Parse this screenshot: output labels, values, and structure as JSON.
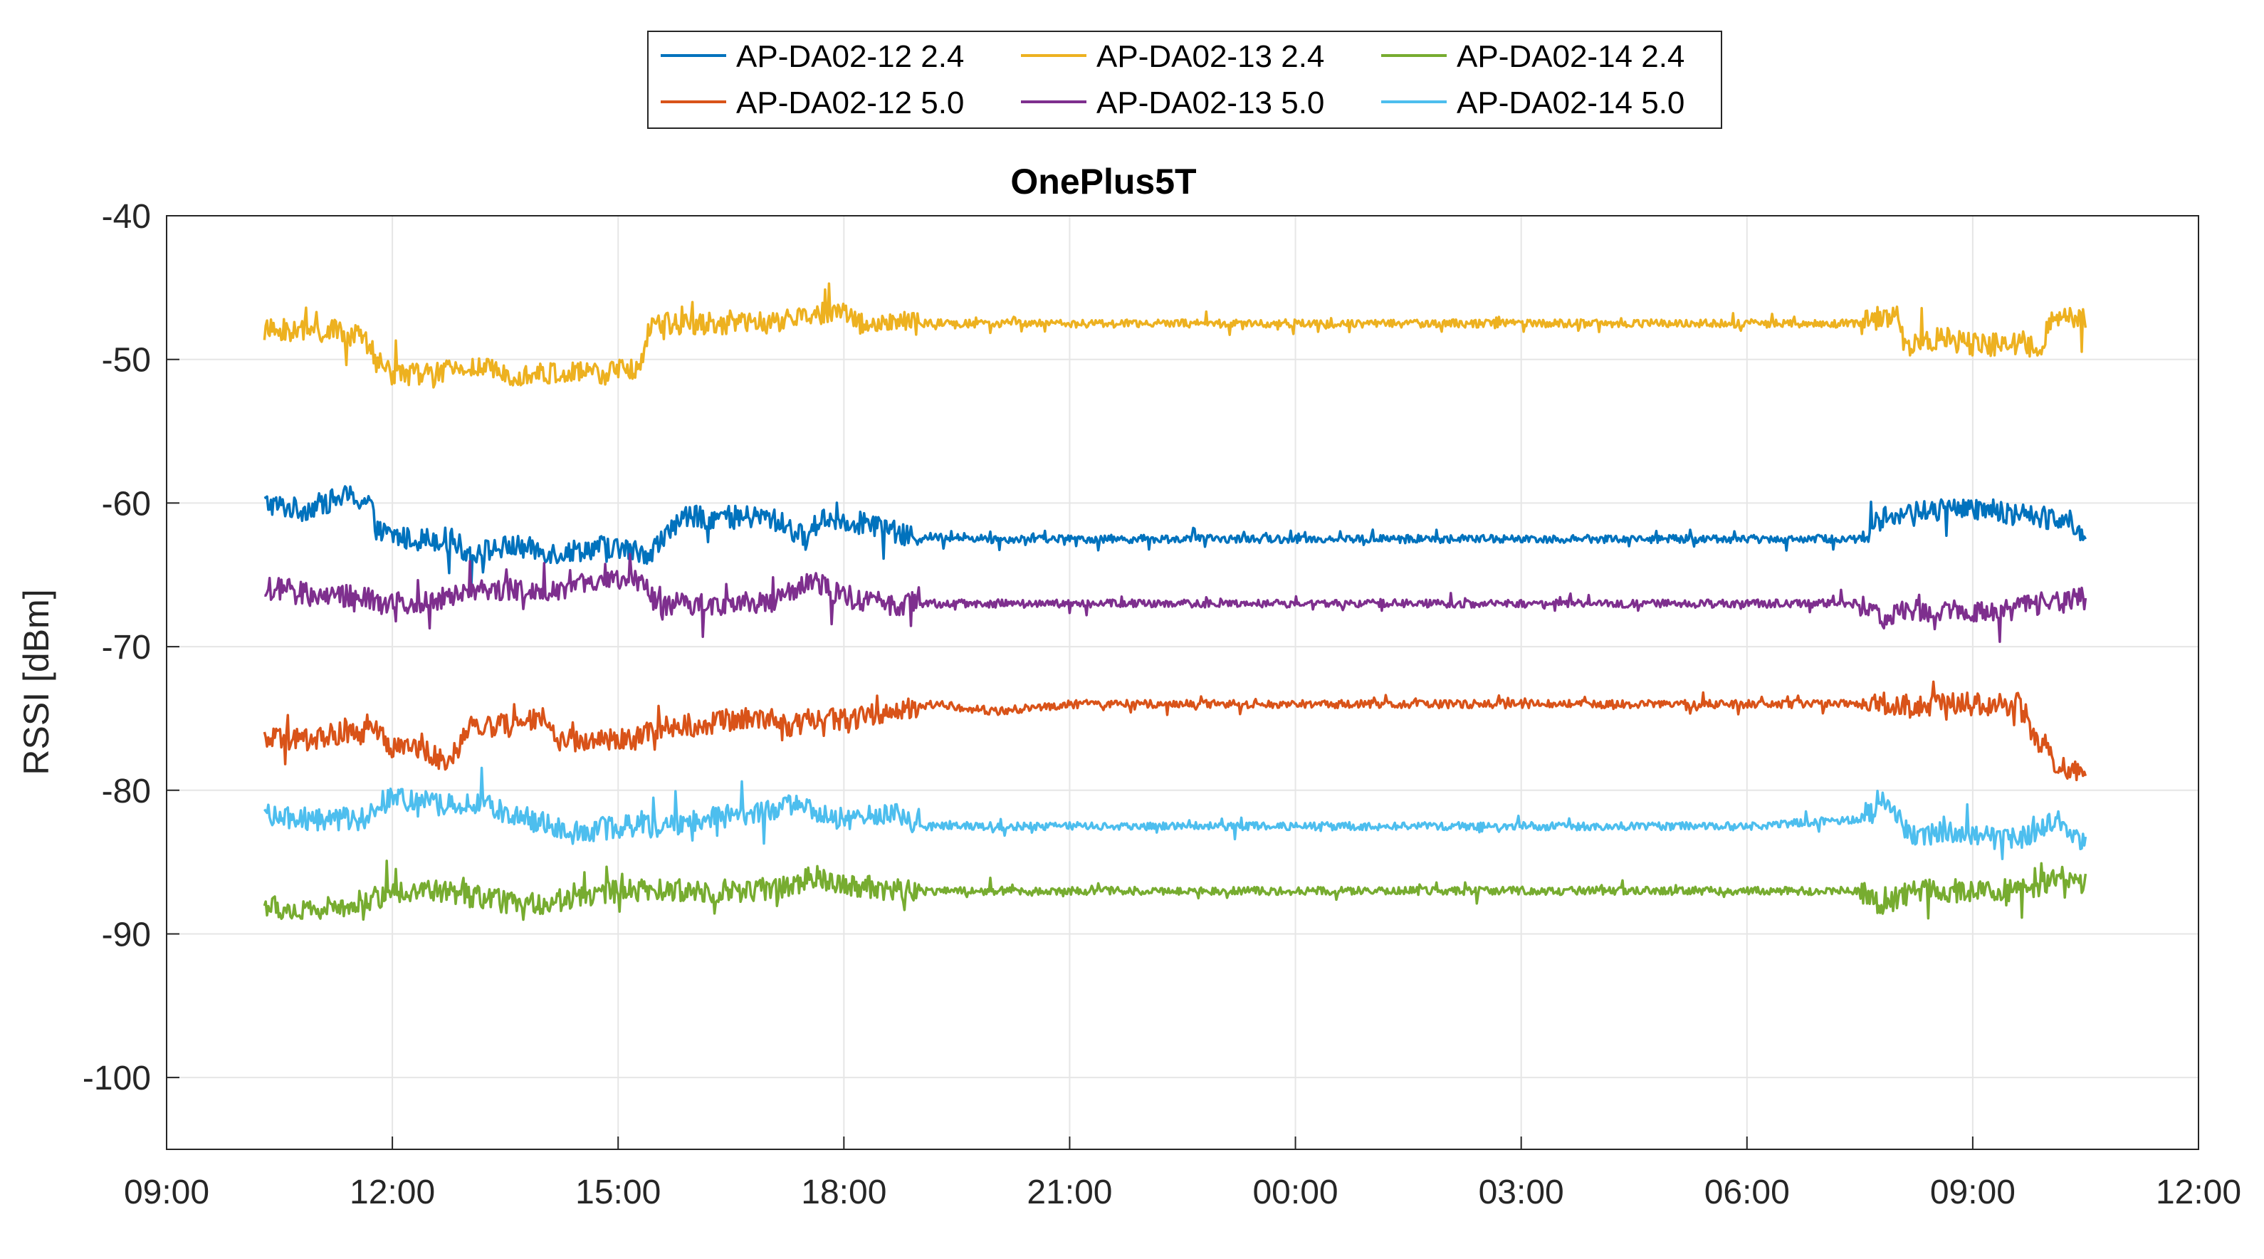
{
  "chart_data": {
    "type": "line",
    "title": "OnePlus5T",
    "xlabel": "",
    "ylabel": "RSSI [dBm]",
    "x_unit": "hours from 09:00 (day 1)",
    "xlim": [
      0,
      27
    ],
    "ylim": [
      -105,
      -40
    ],
    "x_ticks": [
      {
        "value": 0,
        "label": "09:00"
      },
      {
        "value": 3,
        "label": "12:00"
      },
      {
        "value": 6,
        "label": "15:00"
      },
      {
        "value": 9,
        "label": "18:00"
      },
      {
        "value": 12,
        "label": "21:00"
      },
      {
        "value": 15,
        "label": "00:00"
      },
      {
        "value": 18,
        "label": "03:00"
      },
      {
        "value": 21,
        "label": "06:00"
      },
      {
        "value": 24,
        "label": "09:00"
      },
      {
        "value": 27,
        "label": "12:00"
      }
    ],
    "y_ticks": [
      {
        "value": -40,
        "label": "-40"
      },
      {
        "value": -50,
        "label": "-50"
      },
      {
        "value": -60,
        "label": "-60"
      },
      {
        "value": -70,
        "label": "-70"
      },
      {
        "value": -80,
        "label": "-80"
      },
      {
        "value": -90,
        "label": "-90"
      },
      {
        "value": -100,
        "label": "-100"
      }
    ],
    "grid": true,
    "legend_position": "top-center",
    "series": [
      {
        "name": "AP-DA02-12 2.4",
        "color": "#0072BD",
        "points": [
          [
            1.3,
            -60
          ],
          [
            1.8,
            -60.5
          ],
          [
            2.4,
            -59.5
          ],
          [
            2.7,
            -60
          ],
          [
            2.8,
            -62
          ],
          [
            3.2,
            -62.5
          ],
          [
            3.8,
            -62.5
          ],
          [
            4.0,
            -63.5
          ],
          [
            4.6,
            -63
          ],
          [
            5.2,
            -63.5
          ],
          [
            5.8,
            -63
          ],
          [
            6.4,
            -63.5
          ],
          [
            6.7,
            -62
          ],
          [
            6.8,
            -61
          ],
          [
            7.3,
            -61
          ],
          [
            8.0,
            -61
          ],
          [
            8.2,
            -61.5
          ],
          [
            8.5,
            -62.5
          ],
          [
            8.7,
            -61
          ],
          [
            9.4,
            -61.5
          ],
          [
            9.8,
            -62.3
          ],
          [
            11.0,
            -62.5
          ],
          [
            13.0,
            -62.5
          ],
          [
            15.0,
            -62.5
          ],
          [
            17.0,
            -62.5
          ],
          [
            19.0,
            -62.5
          ],
          [
            21.0,
            -62.5
          ],
          [
            22.5,
            -62.5
          ],
          [
            22.8,
            -61
          ],
          [
            23.4,
            -60.5
          ],
          [
            23.8,
            -60.5
          ],
          [
            24.2,
            -60.5
          ],
          [
            24.8,
            -61
          ],
          [
            25.3,
            -61
          ],
          [
            25.5,
            -63
          ]
        ]
      },
      {
        "name": "AP-DA02-13 2.4",
        "color": "#EDB120",
        "points": [
          [
            1.3,
            -48
          ],
          [
            1.6,
            -48
          ],
          [
            2.2,
            -48
          ],
          [
            2.6,
            -48.5
          ],
          [
            2.8,
            -50
          ],
          [
            3.0,
            -51
          ],
          [
            3.6,
            -51
          ],
          [
            4.0,
            -50.5
          ],
          [
            4.6,
            -51
          ],
          [
            5.2,
            -51
          ],
          [
            5.8,
            -51
          ],
          [
            6.3,
            -50.5
          ],
          [
            6.4,
            -48
          ],
          [
            6.6,
            -47.5
          ],
          [
            7.2,
            -47.5
          ],
          [
            8.0,
            -47.5
          ],
          [
            8.5,
            -47
          ],
          [
            9.0,
            -46.5
          ],
          [
            9.2,
            -47.5
          ],
          [
            11.0,
            -47.5
          ],
          [
            13.0,
            -47.5
          ],
          [
            15.0,
            -47.5
          ],
          [
            17.0,
            -47.5
          ],
          [
            19.0,
            -47.5
          ],
          [
            21.0,
            -47.5
          ],
          [
            22.5,
            -47.5
          ],
          [
            22.8,
            -47
          ],
          [
            23.0,
            -47
          ],
          [
            23.1,
            -49
          ],
          [
            23.6,
            -48.5
          ],
          [
            24.0,
            -49
          ],
          [
            24.5,
            -49
          ],
          [
            24.9,
            -49
          ],
          [
            25.1,
            -47
          ],
          [
            25.5,
            -47
          ]
        ]
      },
      {
        "name": "AP-DA02-14 2.4",
        "color": "#77AC30",
        "points": [
          [
            1.3,
            -88
          ],
          [
            1.8,
            -88.5
          ],
          [
            2.4,
            -88
          ],
          [
            2.8,
            -87.5
          ],
          [
            3.0,
            -87
          ],
          [
            3.6,
            -87
          ],
          [
            4.2,
            -87.5
          ],
          [
            4.8,
            -88
          ],
          [
            5.4,
            -87.5
          ],
          [
            6.0,
            -87
          ],
          [
            6.6,
            -87
          ],
          [
            7.2,
            -87
          ],
          [
            7.8,
            -87
          ],
          [
            8.4,
            -86.5
          ],
          [
            8.6,
            -86
          ],
          [
            9.0,
            -86.5
          ],
          [
            9.8,
            -87
          ],
          [
            11.0,
            -87
          ],
          [
            13.0,
            -87
          ],
          [
            15.0,
            -87
          ],
          [
            17.0,
            -87
          ],
          [
            19.0,
            -87
          ],
          [
            21.0,
            -87
          ],
          [
            22.5,
            -87
          ],
          [
            22.8,
            -88
          ],
          [
            23.2,
            -87
          ],
          [
            23.6,
            -87
          ],
          [
            24.0,
            -87
          ],
          [
            24.5,
            -87
          ],
          [
            24.8,
            -87
          ],
          [
            25.1,
            -86
          ],
          [
            25.5,
            -86.5
          ]
        ]
      },
      {
        "name": "AP-DA02-12 5.0",
        "color": "#D95319",
        "points": [
          [
            1.3,
            -76.5
          ],
          [
            1.8,
            -76.5
          ],
          [
            2.4,
            -76
          ],
          [
            2.8,
            -76
          ],
          [
            3.0,
            -77
          ],
          [
            3.4,
            -77
          ],
          [
            3.7,
            -78
          ],
          [
            3.9,
            -77
          ],
          [
            4.0,
            -75.5
          ],
          [
            4.6,
            -75.5
          ],
          [
            5.0,
            -75
          ],
          [
            5.2,
            -76.5
          ],
          [
            5.8,
            -76.5
          ],
          [
            6.2,
            -76.5
          ],
          [
            6.6,
            -75.5
          ],
          [
            7.0,
            -75.5
          ],
          [
            7.6,
            -75
          ],
          [
            8.0,
            -75
          ],
          [
            8.3,
            -75.5
          ],
          [
            8.6,
            -75
          ],
          [
            9.0,
            -75
          ],
          [
            9.2,
            -75
          ],
          [
            9.6,
            -74.5
          ],
          [
            10.2,
            -74
          ],
          [
            11.0,
            -74.5
          ],
          [
            12.0,
            -74
          ],
          [
            15.0,
            -74
          ],
          [
            18.0,
            -74
          ],
          [
            21.0,
            -74
          ],
          [
            22.5,
            -74
          ],
          [
            22.8,
            -74
          ],
          [
            23.1,
            -74
          ],
          [
            24.0,
            -74
          ],
          [
            24.4,
            -74
          ],
          [
            24.6,
            -74
          ],
          [
            24.8,
            -76
          ],
          [
            25.1,
            -78
          ],
          [
            25.5,
            -79
          ]
        ]
      },
      {
        "name": "AP-DA02-13 5.0",
        "color": "#7E2F8E",
        "points": [
          [
            1.3,
            -66
          ],
          [
            1.6,
            -66
          ],
          [
            2.0,
            -66.5
          ],
          [
            2.6,
            -66.5
          ],
          [
            2.9,
            -67
          ],
          [
            3.2,
            -67
          ],
          [
            3.8,
            -66.5
          ],
          [
            4.0,
            -66
          ],
          [
            4.6,
            -66
          ],
          [
            5.2,
            -66
          ],
          [
            5.8,
            -65.5
          ],
          [
            6.3,
            -65.5
          ],
          [
            6.5,
            -67
          ],
          [
            7.0,
            -67
          ],
          [
            7.6,
            -67
          ],
          [
            8.0,
            -67
          ],
          [
            8.4,
            -66
          ],
          [
            8.6,
            -65.5
          ],
          [
            9.0,
            -66.5
          ],
          [
            9.6,
            -67
          ],
          [
            11.0,
            -67
          ],
          [
            13.0,
            -67
          ],
          [
            15.0,
            -67
          ],
          [
            17.0,
            -67
          ],
          [
            19.0,
            -67
          ],
          [
            21.0,
            -67
          ],
          [
            22.5,
            -67
          ],
          [
            22.8,
            -68
          ],
          [
            23.2,
            -67.5
          ],
          [
            23.6,
            -67.5
          ],
          [
            24.0,
            -67.5
          ],
          [
            24.5,
            -67.5
          ],
          [
            24.8,
            -67
          ],
          [
            25.1,
            -67
          ],
          [
            25.5,
            -66.5
          ]
        ]
      },
      {
        "name": "AP-DA02-14 5.0",
        "color": "#4DBEEE",
        "points": [
          [
            1.3,
            -81.5
          ],
          [
            1.6,
            -82
          ],
          [
            2.2,
            -82
          ],
          [
            2.6,
            -82
          ],
          [
            3.0,
            -80.5
          ],
          [
            3.6,
            -81
          ],
          [
            4.2,
            -81
          ],
          [
            4.8,
            -82
          ],
          [
            5.4,
            -83
          ],
          [
            6.0,
            -82.5
          ],
          [
            6.6,
            -82.5
          ],
          [
            7.2,
            -82
          ],
          [
            7.8,
            -81.5
          ],
          [
            8.4,
            -81
          ],
          [
            8.8,
            -82
          ],
          [
            9.2,
            -82
          ],
          [
            9.6,
            -81.5
          ],
          [
            10.0,
            -82.5
          ],
          [
            11.0,
            -82.5
          ],
          [
            13.0,
            -82.5
          ],
          [
            15.0,
            -82.5
          ],
          [
            17.0,
            -82.5
          ],
          [
            19.0,
            -82.5
          ],
          [
            21.0,
            -82.5
          ],
          [
            22.5,
            -82
          ],
          [
            22.8,
            -80.5
          ],
          [
            23.0,
            -82
          ],
          [
            23.2,
            -83
          ],
          [
            23.6,
            -83
          ],
          [
            24.0,
            -83
          ],
          [
            24.5,
            -83.5
          ],
          [
            24.8,
            -83
          ],
          [
            25.1,
            -82
          ],
          [
            25.5,
            -84
          ]
        ]
      }
    ]
  }
}
